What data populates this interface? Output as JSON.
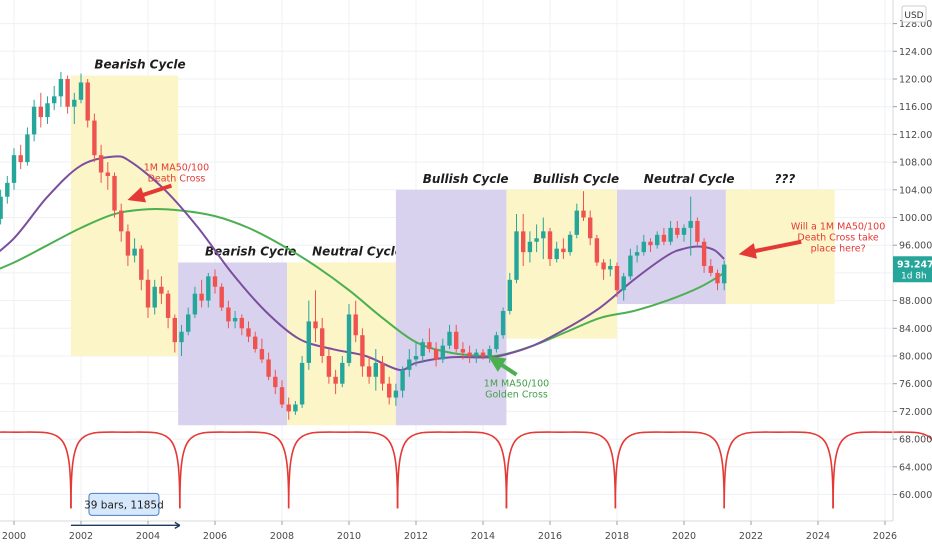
{
  "chart_data": {
    "type": "candlestick",
    "currency_label": "USD",
    "x_ticks": [
      "2000",
      "2002",
      "2004",
      "2006",
      "2008",
      "2010",
      "2012",
      "2014",
      "2016",
      "2018",
      "2020",
      "2022",
      "2024",
      "2026"
    ],
    "y_ticks": [
      "60.000",
      "64.000",
      "68.000",
      "72.000",
      "76.000",
      "80.000",
      "84.000",
      "88.000",
      "92.000",
      "96.000",
      "100.000",
      "104.000",
      "108.000",
      "112.000",
      "116.000",
      "120.000",
      "124.000",
      "128.000"
    ],
    "ylim": [
      56.5,
      129.5
    ],
    "last_price": "93.247",
    "last_price_sub": "1d 8h",
    "colors": {
      "up": "#26a69a",
      "down": "#ef5350",
      "ma50": "#7b4e9e",
      "ma100": "#4caf50",
      "cycle": "#e53935",
      "purple_box": "#d9d2ee",
      "yellow_box": "#fbf5c7"
    },
    "candles": [
      [
        1999.2,
        97.5,
        99.0,
        96.5,
        98.5
      ],
      [
        1999.4,
        98.5,
        100.5,
        97.5,
        99.8
      ],
      [
        1999.6,
        99.8,
        104.0,
        99.0,
        103.0
      ],
      [
        1999.8,
        103.0,
        106.0,
        102.0,
        105.0
      ],
      [
        2000.0,
        105.0,
        110.0,
        104.0,
        109.0
      ],
      [
        2000.2,
        109.0,
        110.5,
        107.0,
        108.0
      ],
      [
        2000.4,
        108.0,
        113.0,
        107.5,
        112.0
      ],
      [
        2000.6,
        112.0,
        117.0,
        111.0,
        116.0
      ],
      [
        2000.8,
        116.0,
        118.0,
        113.0,
        114.5
      ],
      [
        2001.0,
        114.5,
        117.5,
        113.5,
        116.5
      ],
      [
        2001.2,
        116.5,
        119.0,
        115.5,
        117.5
      ],
      [
        2001.4,
        117.5,
        121.0,
        116.0,
        120.0
      ],
      [
        2001.6,
        120.0,
        120.5,
        115.0,
        116.0
      ],
      [
        2001.8,
        116.0,
        118.0,
        113.5,
        117.0
      ],
      [
        2002.0,
        117.0,
        120.8,
        116.5,
        119.5
      ],
      [
        2002.2,
        119.5,
        120.0,
        113.0,
        114.0
      ],
      [
        2002.4,
        114.0,
        115.0,
        108.0,
        109.0
      ],
      [
        2002.6,
        109.0,
        110.5,
        105.0,
        106.5
      ],
      [
        2002.8,
        106.5,
        108.0,
        104.0,
        106.0
      ],
      [
        2003.0,
        106.0,
        106.5,
        100.0,
        101.0
      ],
      [
        2003.2,
        101.0,
        102.0,
        96.5,
        98.0
      ],
      [
        2003.4,
        98.0,
        99.0,
        93.0,
        94.5
      ],
      [
        2003.6,
        94.5,
        97.0,
        93.5,
        95.5
      ],
      [
        2003.8,
        95.5,
        96.0,
        89.5,
        91.0
      ],
      [
        2004.0,
        91.0,
        92.5,
        85.5,
        87.0
      ],
      [
        2004.2,
        87.0,
        91.0,
        86.0,
        90.0
      ],
      [
        2004.4,
        90.0,
        91.5,
        87.5,
        89.0
      ],
      [
        2004.6,
        89.0,
        89.5,
        84.0,
        85.5
      ],
      [
        2004.8,
        85.5,
        86.0,
        80.5,
        82.0
      ],
      [
        2005.0,
        82.0,
        84.5,
        80.0,
        83.5
      ],
      [
        2005.2,
        83.5,
        87.0,
        83.0,
        86.0
      ],
      [
        2005.4,
        86.0,
        90.0,
        85.5,
        89.0
      ],
      [
        2005.6,
        89.0,
        91.0,
        87.0,
        88.0
      ],
      [
        2005.8,
        88.0,
        92.0,
        87.0,
        91.5
      ],
      [
        2006.0,
        91.5,
        92.5,
        89.0,
        90.0
      ],
      [
        2006.2,
        90.0,
        90.5,
        86.5,
        87.0
      ],
      [
        2006.4,
        87.0,
        88.0,
        84.0,
        85.0
      ],
      [
        2006.6,
        85.0,
        86.5,
        84.0,
        85.5
      ],
      [
        2006.8,
        85.5,
        86.0,
        83.0,
        84.0
      ],
      [
        2007.0,
        84.0,
        85.0,
        82.0,
        82.8
      ],
      [
        2007.2,
        82.8,
        83.5,
        80.5,
        81.0
      ],
      [
        2007.4,
        81.0,
        82.5,
        79.0,
        79.5
      ],
      [
        2007.6,
        79.5,
        80.5,
        76.5,
        77.0
      ],
      [
        2007.8,
        77.0,
        78.0,
        74.5,
        75.5
      ],
      [
        2008.0,
        75.5,
        76.5,
        72.5,
        73.0
      ],
      [
        2008.2,
        73.0,
        74.0,
        70.8,
        72.0
      ],
      [
        2008.4,
        72.0,
        73.5,
        71.5,
        73.0
      ],
      [
        2008.6,
        73.0,
        80.0,
        72.5,
        79.0
      ],
      [
        2008.8,
        79.0,
        88.0,
        78.0,
        85.0
      ],
      [
        2009.0,
        85.0,
        89.5,
        82.0,
        84.0
      ],
      [
        2009.2,
        84.0,
        85.5,
        79.0,
        80.0
      ],
      [
        2009.4,
        80.0,
        81.0,
        76.0,
        77.0
      ],
      [
        2009.6,
        77.0,
        78.0,
        74.5,
        76.0
      ],
      [
        2009.8,
        76.0,
        80.0,
        75.5,
        79.0
      ],
      [
        2010.0,
        79.0,
        87.5,
        78.5,
        86.0
      ],
      [
        2010.2,
        86.0,
        88.0,
        82.0,
        83.0
      ],
      [
        2010.4,
        83.0,
        84.0,
        77.0,
        78.5
      ],
      [
        2010.6,
        78.5,
        80.0,
        76.0,
        77.0
      ],
      [
        2010.8,
        77.0,
        81.0,
        75.0,
        79.0
      ],
      [
        2011.0,
        79.0,
        80.0,
        75.0,
        76.0
      ],
      [
        2011.2,
        76.0,
        77.0,
        73.0,
        74.0
      ],
      [
        2011.4,
        74.0,
        76.0,
        72.8,
        75.0
      ],
      [
        2011.6,
        75.0,
        78.5,
        74.0,
        78.0
      ],
      [
        2011.8,
        78.0,
        81.0,
        77.0,
        79.5
      ],
      [
        2012.0,
        79.5,
        82.0,
        78.5,
        80.0
      ],
      [
        2012.2,
        80.0,
        82.5,
        79.0,
        82.0
      ],
      [
        2012.4,
        82.0,
        84.0,
        80.5,
        81.0
      ],
      [
        2012.6,
        81.0,
        82.0,
        78.5,
        79.5
      ],
      [
        2012.8,
        79.5,
        82.5,
        79.0,
        81.5
      ],
      [
        2013.0,
        81.5,
        84.5,
        81.0,
        83.5
      ],
      [
        2013.2,
        83.5,
        84.5,
        80.5,
        81.0
      ],
      [
        2013.4,
        81.0,
        82.0,
        79.5,
        80.5
      ],
      [
        2013.6,
        80.5,
        81.5,
        79.0,
        80.0
      ],
      [
        2013.8,
        80.0,
        81.0,
        79.0,
        80.5
      ],
      [
        2014.0,
        80.5,
        81.0,
        79.5,
        80.0
      ],
      [
        2014.2,
        80.0,
        81.5,
        79.0,
        81.0
      ],
      [
        2014.4,
        81.0,
        83.5,
        80.5,
        83.0
      ],
      [
        2014.6,
        83.0,
        87.0,
        82.5,
        86.5
      ],
      [
        2014.8,
        86.5,
        92.0,
        86.0,
        91.0
      ],
      [
        2015.0,
        91.0,
        100.5,
        90.5,
        98.0
      ],
      [
        2015.2,
        98.0,
        100.5,
        93.0,
        95.0
      ],
      [
        2015.4,
        95.0,
        98.0,
        93.5,
        96.5
      ],
      [
        2015.6,
        96.5,
        99.0,
        95.0,
        97.0
      ],
      [
        2015.8,
        97.0,
        100.0,
        94.0,
        98.0
      ],
      [
        2016.0,
        98.0,
        98.5,
        93.0,
        94.0
      ],
      [
        2016.2,
        94.0,
        96.5,
        93.5,
        95.5
      ],
      [
        2016.4,
        95.5,
        97.0,
        94.0,
        95.0
      ],
      [
        2016.6,
        95.0,
        98.0,
        94.5,
        97.5
      ],
      [
        2016.8,
        97.5,
        102.0,
        97.0,
        101.0
      ],
      [
        2017.0,
        101.0,
        103.8,
        99.5,
        100.0
      ],
      [
        2017.2,
        100.0,
        101.0,
        96.0,
        97.0
      ],
      [
        2017.4,
        97.0,
        97.5,
        93.0,
        93.5
      ],
      [
        2017.6,
        93.5,
        94.0,
        91.0,
        92.5
      ],
      [
        2017.8,
        92.5,
        94.0,
        91.5,
        93.0
      ],
      [
        2018.0,
        93.0,
        93.5,
        88.5,
        89.5
      ],
      [
        2018.2,
        89.5,
        92.0,
        88.0,
        91.5
      ],
      [
        2018.4,
        91.5,
        95.5,
        91.0,
        94.5
      ],
      [
        2018.6,
        94.5,
        96.0,
        93.5,
        95.0
      ],
      [
        2018.8,
        95.0,
        97.5,
        94.5,
        96.5
      ],
      [
        2019.0,
        96.5,
        97.0,
        95.0,
        96.0
      ],
      [
        2019.2,
        96.0,
        98.0,
        95.5,
        97.5
      ],
      [
        2019.4,
        97.5,
        98.5,
        96.0,
        96.5
      ],
      [
        2019.6,
        96.5,
        99.5,
        96.0,
        98.5
      ],
      [
        2019.8,
        98.5,
        99.5,
        97.0,
        97.5
      ],
      [
        2020.0,
        97.5,
        99.0,
        96.5,
        98.5
      ],
      [
        2020.2,
        98.5,
        103.0,
        94.5,
        99.5
      ],
      [
        2020.4,
        99.5,
        100.0,
        96.0,
        96.5
      ],
      [
        2020.6,
        96.5,
        97.0,
        92.0,
        93.0
      ],
      [
        2020.8,
        93.0,
        94.0,
        91.5,
        92.0
      ],
      [
        2021.0,
        92.0,
        92.5,
        89.5,
        90.5
      ],
      [
        2021.2,
        90.5,
        93.8,
        89.5,
        93.2
      ]
    ],
    "ma50": [
      [
        1999.0,
        93.0
      ],
      [
        2000.0,
        97.0
      ],
      [
        2001.0,
        103.0
      ],
      [
        2002.0,
        107.5
      ],
      [
        2003.0,
        108.8
      ],
      [
        2003.5,
        108.0
      ],
      [
        2004.5,
        104.0
      ],
      [
        2005.5,
        98.5
      ],
      [
        2006.5,
        92.0
      ],
      [
        2007.5,
        86.5
      ],
      [
        2008.5,
        82.5
      ],
      [
        2009.5,
        81.0
      ],
      [
        2010.5,
        80.0
      ],
      [
        2011.5,
        78.0
      ],
      [
        2012.0,
        79.0
      ],
      [
        2013.0,
        79.8
      ],
      [
        2014.0,
        79.8
      ],
      [
        2014.5,
        80.0
      ],
      [
        2015.5,
        81.5
      ],
      [
        2016.5,
        84.0
      ],
      [
        2017.5,
        87.0
      ],
      [
        2018.5,
        91.0
      ],
      [
        2019.5,
        94.5
      ],
      [
        2020.0,
        95.5
      ],
      [
        2020.5,
        95.8
      ],
      [
        2020.9,
        95.3
      ],
      [
        2021.2,
        94.0
      ]
    ],
    "ma100": [
      [
        1999.0,
        91.5
      ],
      [
        2000.0,
        93.5
      ],
      [
        2001.0,
        96.0
      ],
      [
        2002.0,
        98.5
      ],
      [
        2003.0,
        100.5
      ],
      [
        2004.0,
        101.2
      ],
      [
        2005.0,
        101.0
      ],
      [
        2006.0,
        100.2
      ],
      [
        2007.0,
        98.5
      ],
      [
        2008.0,
        96.0
      ],
      [
        2009.0,
        93.0
      ],
      [
        2010.0,
        89.5
      ],
      [
        2011.0,
        85.5
      ],
      [
        2012.0,
        82.0
      ],
      [
        2013.0,
        80.5
      ],
      [
        2014.0,
        80.0
      ],
      [
        2014.6,
        80.2
      ],
      [
        2015.5,
        81.5
      ],
      [
        2016.5,
        83.5
      ],
      [
        2017.5,
        85.5
      ],
      [
        2018.5,
        86.5
      ],
      [
        2019.5,
        88.0
      ],
      [
        2020.5,
        90.0
      ],
      [
        2021.2,
        92.0
      ]
    ],
    "boxes": [
      {
        "x0": 2001.7,
        "x1": 2004.9,
        "y0": 80.0,
        "y1": 120.5,
        "fill": "yellow",
        "label": "Bearish Cycle",
        "label_x": 2002.4,
        "label_y": 121.5
      },
      {
        "x0": 2004.9,
        "x1": 2008.15,
        "y0": 70.0,
        "y1": 93.5,
        "fill": "purple",
        "label": "Bearish Cycle",
        "label_x": 2005.7,
        "label_y": 94.5
      },
      {
        "x0": 2008.15,
        "x1": 2011.4,
        "y0": 70.0,
        "y1": 93.5,
        "fill": "yellow",
        "label": "Neutral Cycle",
        "label_x": 2008.9,
        "label_y": 94.5
      },
      {
        "x0": 2011.4,
        "x1": 2014.7,
        "y0": 70.0,
        "y1": 104.0,
        "fill": "purple",
        "label": "Bullish Cycle",
        "label_x": 2012.2,
        "label_y": 105.0
      },
      {
        "x0": 2014.7,
        "x1": 2018.0,
        "y0": 82.5,
        "y1": 104.0,
        "fill": "yellow",
        "label": "Bullish Cycle",
        "label_x": 2015.5,
        "label_y": 105.0
      },
      {
        "x0": 2018.0,
        "x1": 2021.25,
        "y0": 87.5,
        "y1": 104.0,
        "fill": "purple",
        "label": "Neutral Cycle",
        "label_x": 2018.8,
        "label_y": 105.0
      },
      {
        "x0": 2021.25,
        "x1": 2024.5,
        "y0": 87.5,
        "y1": 104.0,
        "fill": "yellow",
        "label": "???",
        "label_x": 2022.7,
        "label_y": 105.0
      }
    ],
    "cycle_lows": [
      1998.45,
      2001.7,
      2004.95,
      2008.2,
      2011.45,
      2014.7,
      2017.95,
      2021.2,
      2024.45,
      2027.7
    ],
    "cycle_low_value": 58.0,
    "cycle_high_value": 69.0,
    "annotations": [
      {
        "key": "death1",
        "lines": [
          "1M MA50/100",
          "Death Cross"
        ],
        "color": "red",
        "x": 2004.85,
        "y": 106.8
      },
      {
        "key": "golden",
        "lines": [
          "1M MA50/100",
          "Golden Cross"
        ],
        "color": "green",
        "x": 2015.0,
        "y": 75.6
      },
      {
        "key": "will",
        "lines": [
          "Will a 1M MA50/100",
          "Death Cross take",
          "place here?"
        ],
        "color": "red",
        "x": 2024.6,
        "y": 98.3
      }
    ],
    "bars_measure": {
      "label": "39 bars, 1185d",
      "x0": 2001.7,
      "x1": 2004.95,
      "y": 58.0
    }
  }
}
